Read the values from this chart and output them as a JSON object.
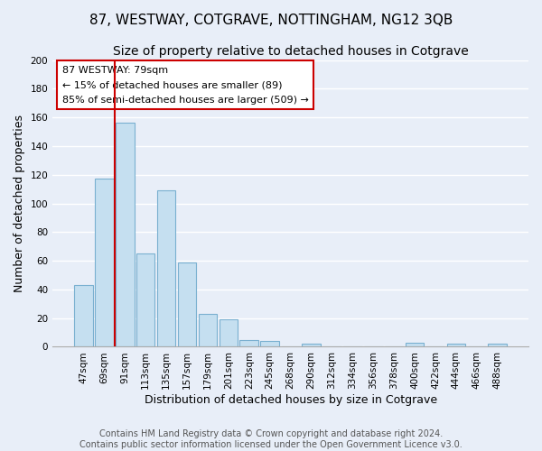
{
  "title": "87, WESTWAY, COTGRAVE, NOTTINGHAM, NG12 3QB",
  "subtitle": "Size of property relative to detached houses in Cotgrave",
  "xlabel": "Distribution of detached houses by size in Cotgrave",
  "ylabel": "Number of detached properties",
  "bar_labels": [
    "47sqm",
    "69sqm",
    "91sqm",
    "113sqm",
    "135sqm",
    "157sqm",
    "179sqm",
    "201sqm",
    "223sqm",
    "245sqm",
    "268sqm",
    "290sqm",
    "312sqm",
    "334sqm",
    "356sqm",
    "378sqm",
    "400sqm",
    "422sqm",
    "444sqm",
    "466sqm",
    "488sqm"
  ],
  "bar_values": [
    43,
    117,
    156,
    65,
    109,
    59,
    23,
    19,
    5,
    4,
    0,
    2,
    0,
    0,
    0,
    0,
    3,
    0,
    2,
    0,
    2
  ],
  "bar_color": "#c5dff0",
  "bar_edge_color": "#7ab0d0",
  "ylim": [
    0,
    200
  ],
  "yticks": [
    0,
    20,
    40,
    60,
    80,
    100,
    120,
    140,
    160,
    180,
    200
  ],
  "property_line_label": "87 WESTWAY: 79sqm",
  "annotation_line1": "← 15% of detached houses are smaller (89)",
  "annotation_line2": "85% of semi-detached houses are larger (509) →",
  "footer_line1": "Contains HM Land Registry data © Crown copyright and database right 2024.",
  "footer_line2": "Contains public sector information licensed under the Open Government Licence v3.0.",
  "background_color": "#e8eef8",
  "grid_color": "#ffffff",
  "title_fontsize": 11,
  "subtitle_fontsize": 10,
  "axis_label_fontsize": 9,
  "tick_fontsize": 7.5,
  "footer_fontsize": 7
}
